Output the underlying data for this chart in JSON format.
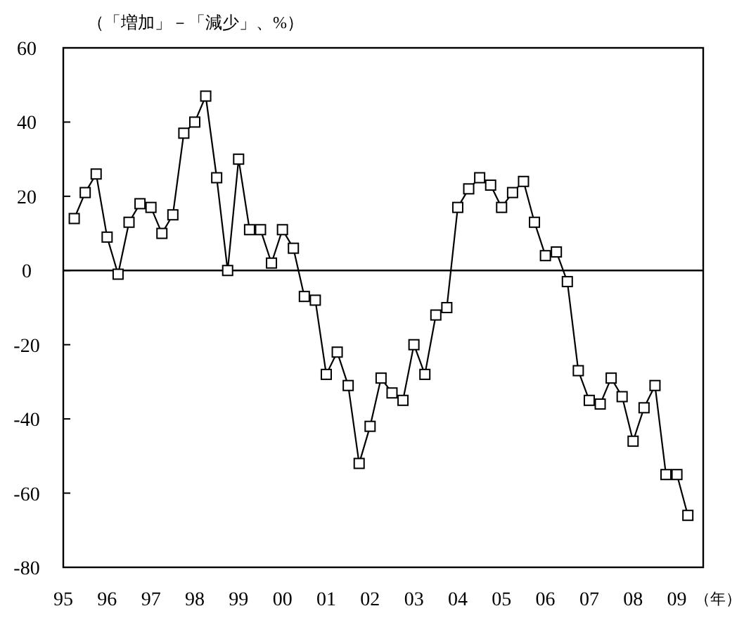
{
  "chart_data": {
    "type": "line",
    "ylabel": "（「増加」－「減少」、%）",
    "xlabel": "（年）",
    "x": [
      1995.25,
      1995.5,
      1995.75,
      1996,
      1996.25,
      1996.5,
      1996.75,
      1997,
      1997.25,
      1997.5,
      1997.75,
      1998,
      1998.25,
      1998.5,
      1998.75,
      1999,
      1999.25,
      1999.5,
      1999.75,
      2000,
      2000.25,
      2000.5,
      2000.75,
      2001,
      2001.25,
      2001.5,
      2001.75,
      2002,
      2002.25,
      2002.5,
      2002.75,
      2003,
      2003.25,
      2003.5,
      2003.75,
      2004,
      2004.25,
      2004.5,
      2004.75,
      2005,
      2005.25,
      2005.5,
      2005.75,
      2006,
      2006.25,
      2006.5,
      2006.75,
      2007,
      2007.25,
      2007.5,
      2007.75,
      2008,
      2008.25,
      2008.5,
      2008.75,
      2009,
      2009.25
    ],
    "series": [
      {
        "color": "#000000",
        "values": [
          14,
          21,
          26,
          9,
          -1,
          13,
          18,
          17,
          10,
          15,
          37,
          40,
          47,
          25,
          0,
          30,
          11,
          11,
          2,
          11,
          6,
          -7,
          -8,
          -28,
          -22,
          -31,
          -52,
          -42,
          -29,
          -33,
          -35,
          -20,
          -28,
          -12,
          -10,
          17,
          22,
          25,
          23,
          17,
          21,
          24,
          13,
          4,
          5,
          -3,
          -27,
          -35,
          -36,
          -29,
          -34,
          -46,
          -37,
          -31,
          -55,
          -55,
          -66
        ]
      }
    ],
    "xlim": [
      1995,
      2009.6
    ],
    "xticks": [
      {
        "value": 1995,
        "label": "95"
      },
      {
        "value": 1996,
        "label": "96"
      },
      {
        "value": 1997,
        "label": "97"
      },
      {
        "value": 1998,
        "label": "98"
      },
      {
        "value": 1999,
        "label": "99"
      },
      {
        "value": 2000,
        "label": "00"
      },
      {
        "value": 2001,
        "label": "01"
      },
      {
        "value": 2002,
        "label": "02"
      },
      {
        "value": 2003,
        "label": "03"
      },
      {
        "value": 2004,
        "label": "04"
      },
      {
        "value": 2005,
        "label": "05"
      },
      {
        "value": 2006,
        "label": "06"
      },
      {
        "value": 2007,
        "label": "07"
      },
      {
        "value": 2008,
        "label": "08"
      },
      {
        "value": 2009,
        "label": "09"
      }
    ],
    "ylim": [
      -80,
      60
    ],
    "yticks": [
      -80,
      -60,
      -40,
      -20,
      0,
      20,
      40,
      60
    ],
    "ref_lines": [
      {
        "axis": "y",
        "value": 0,
        "color": "#000000"
      }
    ],
    "marker": "square",
    "line_style": "solid",
    "grid": false
  }
}
